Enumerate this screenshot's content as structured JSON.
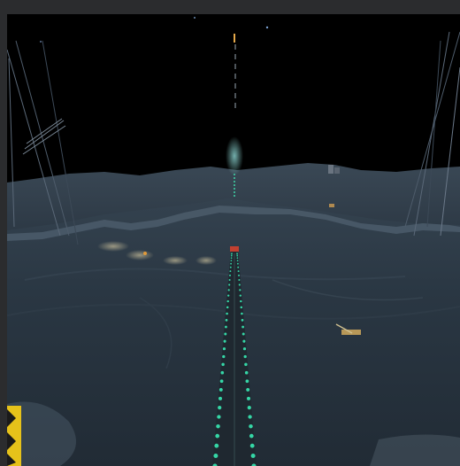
{
  "scene": {
    "type": "night-runway-flight-view",
    "colors": {
      "sky": "#000000",
      "terrain_far": "#2c3844",
      "terrain_near": "#26313d",
      "snow": "#5a6b7a",
      "runway_lights": "#35d6a6",
      "hazard_yellow": "#e6c21a",
      "frame": "#2b2c2e"
    }
  },
  "icons": {
    "hazard_marker": "warning-stripes-icon",
    "vehicle": "vehicle-icon",
    "structure": "structure-icon"
  }
}
